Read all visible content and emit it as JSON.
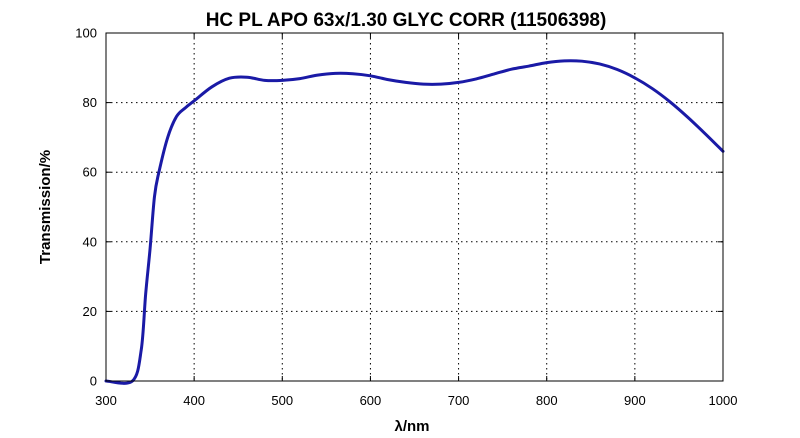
{
  "chart_data": {
    "type": "line",
    "title": "HC PL APO 63x/1.30 GLYC CORR (11506398)",
    "xlabel": "λ/nm",
    "ylabel": "Transmission/%",
    "xlim": [
      300,
      1000
    ],
    "ylim": [
      0,
      100
    ],
    "xticks": [
      300,
      400,
      500,
      600,
      700,
      800,
      900,
      1000
    ],
    "yticks": [
      0,
      20,
      40,
      60,
      80,
      100
    ],
    "grid": true,
    "series_color": "#1a1aa6",
    "series": [
      {
        "x": [
          300,
          330,
          340,
          345,
          350,
          355,
          360,
          370,
          380,
          390,
          400,
          420,
          440,
          460,
          480,
          500,
          520,
          540,
          560,
          580,
          600,
          620,
          640,
          660,
          680,
          700,
          720,
          740,
          760,
          780,
          800,
          820,
          840,
          860,
          880,
          900,
          920,
          940,
          960,
          980,
          1000
        ],
        "y": [
          0,
          0,
          9,
          25,
          38,
          53,
          60,
          70,
          76,
          78.5,
          80.5,
          84.5,
          87,
          87.3,
          86.4,
          86.4,
          86.9,
          87.9,
          88.4,
          88.3,
          87.7,
          86.6,
          85.8,
          85.3,
          85.3,
          85.8,
          86.8,
          88.2,
          89.6,
          90.5,
          91.5,
          92,
          91.9,
          91.1,
          89.5,
          87.1,
          84,
          80.2,
          75.8,
          71,
          66
        ]
      }
    ]
  }
}
